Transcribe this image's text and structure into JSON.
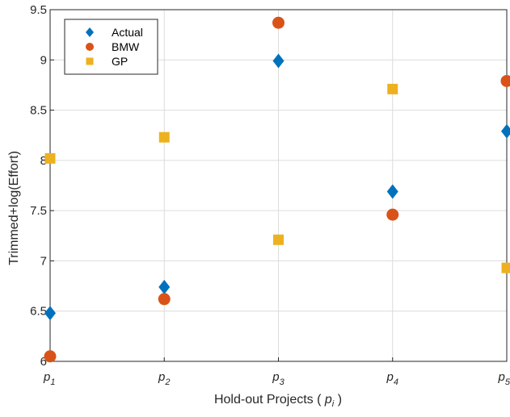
{
  "chart_data": {
    "type": "scatter",
    "categories": [
      "p1",
      "p2",
      "p3",
      "p4",
      "p5"
    ],
    "x_tick_labels": [
      {
        "base": "p",
        "sub": "1"
      },
      {
        "base": "p",
        "sub": "2"
      },
      {
        "base": "p",
        "sub": "3"
      },
      {
        "base": "p",
        "sub": "4"
      },
      {
        "base": "p",
        "sub": "5"
      }
    ],
    "xlabel": {
      "prefix": "Hold-out Projects ( ",
      "base": "p",
      "sub": "i",
      "suffix": " )"
    },
    "ylabel": "Trimmed+log(Effort)",
    "ylim": [
      6,
      9.5
    ],
    "y_ticks": [
      6,
      6.5,
      7,
      7.5,
      8,
      8.5,
      9,
      9.5
    ],
    "y_tick_labels": [
      "6",
      "6.5",
      "7",
      "7.5",
      "8",
      "8.5",
      "9",
      "9.5"
    ],
    "grid": true,
    "legend_position": "top-left",
    "series": [
      {
        "name": "Actual",
        "marker": "diamond",
        "color": "#0072BD",
        "values": [
          6.48,
          6.74,
          8.99,
          7.69,
          8.29
        ]
      },
      {
        "name": "BMW",
        "marker": "circle",
        "color": "#D95319",
        "values": [
          6.05,
          6.62,
          9.37,
          7.46,
          8.79
        ]
      },
      {
        "name": "GP",
        "marker": "square",
        "color": "#EDB120",
        "values": [
          8.02,
          8.23,
          7.21,
          8.71,
          6.93
        ]
      }
    ]
  }
}
